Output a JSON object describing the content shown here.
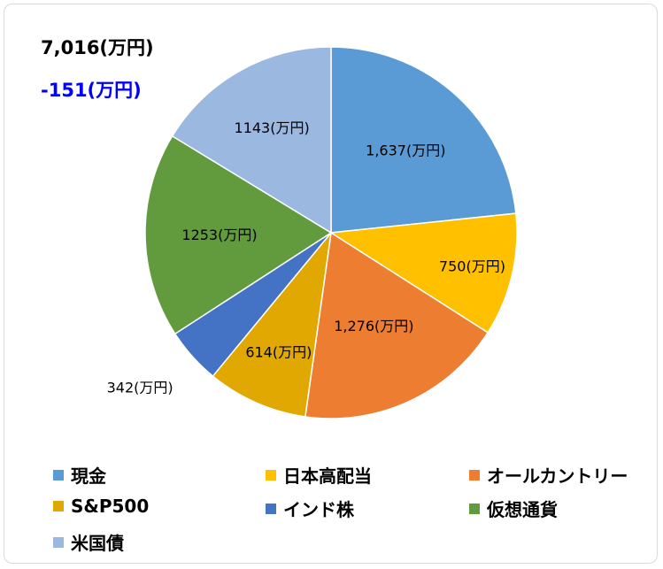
{
  "header": {
    "total": "7,016(万円)",
    "diff": "-151(万円)",
    "diff_color": "#0000ff"
  },
  "chart_data": {
    "type": "pie",
    "title": "",
    "slices": [
      {
        "name": "現金",
        "value": 1637,
        "label": "1,637(万円)",
        "color": "#5b9bd5"
      },
      {
        "name": "日本高配当",
        "value": 750,
        "label": "750(万円)",
        "color": "#ffc000"
      },
      {
        "name": "オールカントリー",
        "value": 1276,
        "label": "1,276(万円)",
        "color": "#ed7d31"
      },
      {
        "name": "S&P500",
        "value": 614,
        "label": "614(万円)",
        "color": "#e0a800"
      },
      {
        "name": "インド株",
        "value": 342,
        "label": "342(万円)",
        "color": "#4472c4"
      },
      {
        "name": "仮想通貨",
        "value": 1253,
        "label": "1253(万円)",
        "color": "#629b3e"
      },
      {
        "name": "米国債",
        "value": 1143,
        "label": "1143(万円)",
        "color": "#9ab8e0"
      }
    ],
    "legend_position": "bottom"
  }
}
